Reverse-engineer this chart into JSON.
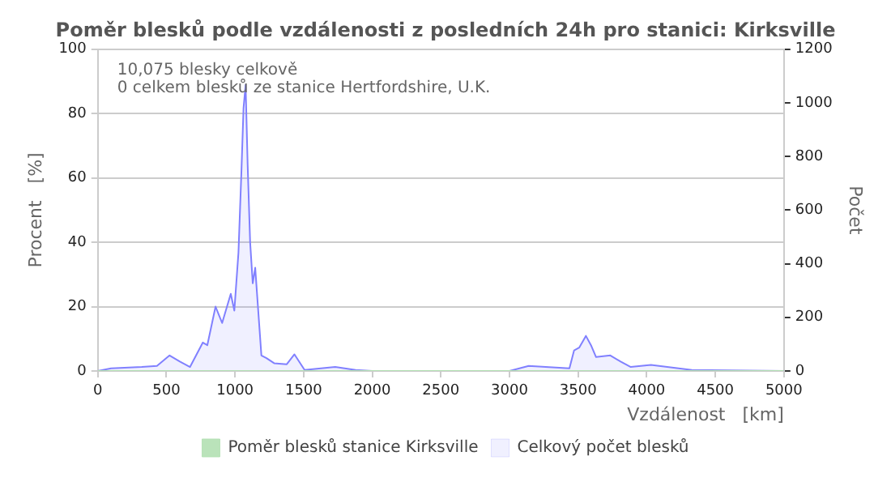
{
  "chart_data": {
    "type": "area",
    "title": "Poměr blesků podle vzdálenosti z posledních 24h pro stanici: Kirksville",
    "xlabel": "Vzdálenost   [km]",
    "ylabel": "Procent   [%]",
    "y2label": "Počet",
    "annotations": [
      "10,075 blesky celkově",
      "0 celkem blesků ze stanice Hertfordshire, U.K."
    ],
    "series": [
      {
        "name": "Poměr blesků stanice Kirksville",
        "type": "line",
        "color": "#b3e0b3",
        "x": [
          0,
          5000
        ],
        "values": [
          0,
          0
        ]
      },
      {
        "name": "Celkový počet blesků",
        "color": "#8080ff",
        "axis": "y2",
        "x": [
          0,
          97,
          320,
          431,
          523,
          598,
          672,
          765,
          798,
          858,
          906,
          969,
          995,
          1025,
          1047,
          1062,
          1077,
          1092,
          1110,
          1129,
          1147,
          1192,
          1229,
          1285,
          1377,
          1433,
          1507,
          1730,
          1878,
          2000,
          3000,
          3140,
          3437,
          3471,
          3508,
          3557,
          3594,
          3631,
          3735,
          3810,
          3884,
          4031,
          4328,
          5000
        ],
        "values": [
          0,
          10,
          15,
          19,
          58,
          35,
          15,
          106,
          96,
          240,
          179,
          288,
          225,
          442,
          750,
          981,
          1067,
          769,
          481,
          327,
          385,
          58,
          48,
          29,
          25,
          62,
          4,
          15,
          4,
          0,
          0,
          19,
          10,
          77,
          87,
          131,
          96,
          52,
          58,
          35,
          15,
          23,
          4,
          0
        ]
      }
    ],
    "xlim": [
      0,
      5000
    ],
    "xticks": [
      0,
      500,
      1000,
      1500,
      2000,
      2500,
      3000,
      3500,
      4000,
      4500,
      5000
    ],
    "ylim": [
      0,
      100
    ],
    "yticks": [
      0,
      20,
      40,
      60,
      80,
      100
    ],
    "y2lim": [
      0,
      1200
    ],
    "y2ticks": [
      0,
      200,
      400,
      600,
      800,
      1000,
      1200
    ],
    "grid": "y",
    "legend": "bottom",
    "marker": "none",
    "line_style": "solid"
  }
}
